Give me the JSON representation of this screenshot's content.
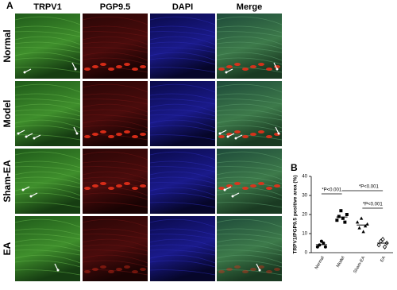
{
  "panel_a": {
    "label": "A",
    "columns": [
      "TRPV1",
      "PGP9.5",
      "DAPI",
      "Merge"
    ],
    "rows": [
      "Normal",
      "Model",
      "Sham-EA",
      "EA"
    ]
  },
  "chart_data": {
    "type": "scatter",
    "label": "B",
    "y_label": "TRPV1/PGP9.5 positive area (%)",
    "categories": [
      "Normal",
      "Model",
      "Sham-EA",
      "EA"
    ],
    "points": [
      [
        3,
        4,
        6,
        5,
        3
      ],
      [
        17,
        19,
        22,
        18,
        16,
        20
      ],
      [
        16,
        13,
        18,
        11,
        14,
        15
      ],
      [
        4,
        6,
        7,
        3,
        5
      ]
    ],
    "means": [
      4.2,
      18.7,
      14.5,
      5
    ],
    "ylim": [
      0,
      40
    ],
    "yticks": [
      0,
      10,
      20,
      30,
      40
    ],
    "annotations": [
      "*P<0.001",
      "*P<0.001",
      "*P<0.001"
    ]
  }
}
